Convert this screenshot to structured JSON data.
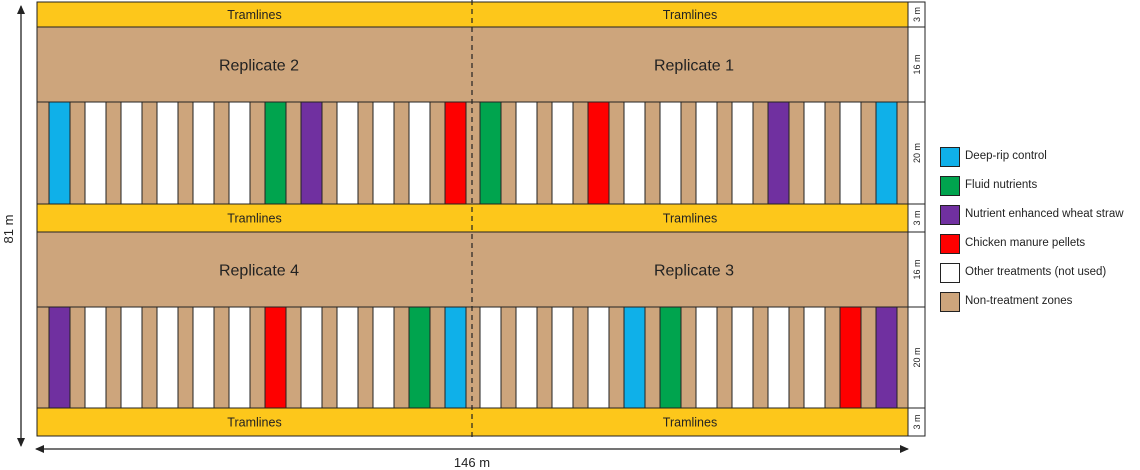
{
  "colors": {
    "tramline": "#fdc71b",
    "non_treatment": "#cda57c",
    "deep_rip": "#0fb0e9",
    "fluid": "#00a44e",
    "wheat_straw": "#7030a0",
    "chicken": "#fe0000",
    "other": "#ffffff",
    "border": "#222222"
  },
  "tramline_label": "Tramlines",
  "dimensions": {
    "width": "146 m",
    "height": "81 m",
    "tramline_width": "3 m",
    "replicate_zone_width": "16 m",
    "plot_row_width": "20 m"
  },
  "replicates": {
    "top_left": "Replicate 2",
    "top_right": "Replicate 1",
    "bottom_left": "Replicate 4",
    "bottom_right": "Replicate 3"
  },
  "plot_rows": {
    "top_left": [
      "deep_rip",
      "other",
      "other",
      "other",
      "other",
      "other",
      "fluid",
      "wheat_straw",
      "other",
      "other",
      "other",
      "chicken"
    ],
    "top_right": [
      "fluid",
      "other",
      "other",
      "chicken",
      "other",
      "other",
      "other",
      "other",
      "wheat_straw",
      "other",
      "other",
      "deep_rip"
    ],
    "bottom_left": [
      "wheat_straw",
      "other",
      "other",
      "other",
      "other",
      "other",
      "chicken",
      "other",
      "other",
      "other",
      "fluid",
      "deep_rip"
    ],
    "bottom_right": [
      "other",
      "other",
      "other",
      "other",
      "deep_rip",
      "fluid",
      "other",
      "other",
      "other",
      "other",
      "chicken",
      "wheat_straw"
    ]
  },
  "legend": [
    {
      "label": "Deep-rip control",
      "color_key": "deep_rip"
    },
    {
      "label": "Fluid nutrients",
      "color_key": "fluid"
    },
    {
      "label": "Nutrient enhanced wheat straw",
      "color_key": "wheat_straw"
    },
    {
      "label": "Chicken manure pellets",
      "color_key": "chicken"
    },
    {
      "label": "Other treatments (not used)",
      "color_key": "other"
    },
    {
      "label": "Non-treatment zones",
      "color_key": "non_treatment"
    }
  ]
}
